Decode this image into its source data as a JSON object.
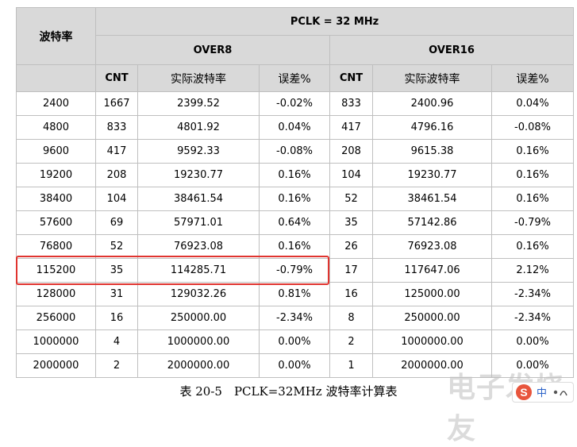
{
  "table": {
    "corner_label": "波特率",
    "pclk_header": "PCLK = 32 MHz",
    "groups": [
      "OVER8",
      "OVER16"
    ],
    "subheaders": [
      "CNT",
      "实际波特率",
      "误差%",
      "CNT",
      "实际波特率",
      "误差%"
    ],
    "rows": [
      [
        "2400",
        "1667",
        "2399.52",
        "-0.02%",
        "833",
        "2400.96",
        "0.04%"
      ],
      [
        "4800",
        "833",
        "4801.92",
        "0.04%",
        "417",
        "4796.16",
        "-0.08%"
      ],
      [
        "9600",
        "417",
        "9592.33",
        "-0.08%",
        "208",
        "9615.38",
        "0.16%"
      ],
      [
        "19200",
        "208",
        "19230.77",
        "0.16%",
        "104",
        "19230.77",
        "0.16%"
      ],
      [
        "38400",
        "104",
        "38461.54",
        "0.16%",
        "52",
        "38461.54",
        "0.16%"
      ],
      [
        "57600",
        "69",
        "57971.01",
        "0.64%",
        "35",
        "57142.86",
        "-0.79%"
      ],
      [
        "76800",
        "52",
        "76923.08",
        "0.16%",
        "26",
        "76923.08",
        "0.16%"
      ],
      [
        "115200",
        "35",
        "114285.71",
        "-0.79%",
        "17",
        "117647.06",
        "2.12%"
      ],
      [
        "128000",
        "31",
        "129032.26",
        "0.81%",
        "16",
        "125000.00",
        "-2.34%"
      ],
      [
        "256000",
        "16",
        "250000.00",
        "-2.34%",
        "8",
        "250000.00",
        "-2.34%"
      ],
      [
        "1000000",
        "4",
        "1000000.00",
        "0.00%",
        "2",
        "1000000.00",
        "0.00%"
      ],
      [
        "2000000",
        "2",
        "2000000.00",
        "0.00%",
        "1",
        "2000000.00",
        "0.00%"
      ]
    ]
  },
  "caption": "表 20-5　PCLK=32MHz 波特率计算表",
  "watermark": {
    "text": "电子发烧友",
    "logo_letter": "S",
    "logo_label": "中"
  },
  "colors": {
    "header_bg": "#d9d9d9",
    "grid": "#bfbfbf",
    "highlight": "#e0342f"
  }
}
